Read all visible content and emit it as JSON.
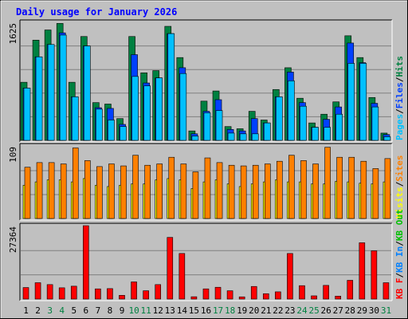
{
  "title": "Daily usage for January 2026",
  "colors": {
    "background": "#c0c0c0",
    "title": "#0000ff",
    "hits": "#008040",
    "files": "#0040ff",
    "pages": "#00c0ff",
    "visits": "#ffff00",
    "sites": "#ff8000",
    "kbin": "#0080ff",
    "kbout": "#00c000",
    "kbf": "#ff0000",
    "weekend_label": "#008040",
    "weekday_label": "#000000"
  },
  "chart_data": [
    {
      "type": "bar",
      "panel": "hits_files_pages",
      "ymax_label": "1625",
      "ylim": [
        0,
        1625
      ],
      "legend": [
        {
          "label": "Pages",
          "color": "#00c0ff"
        },
        {
          "label": "/",
          "color": "#000000"
        },
        {
          "label": "Files",
          "color": "#0040ff"
        },
        {
          "label": "/",
          "color": "#000000"
        },
        {
          "label": "Hits",
          "color": "#008040"
        }
      ],
      "series": [
        {
          "name": "Hits",
          "color": "#008040",
          "values": [
            800,
            1380,
            1520,
            1610,
            800,
            1430,
            520,
            500,
            300,
            1430,
            930,
            960,
            1570,
            1140,
            130,
            540,
            680,
            190,
            160,
            400,
            280,
            700,
            1000,
            580,
            240,
            360,
            530,
            1440,
            1140,
            590,
            100
          ]
        },
        {
          "name": "Files",
          "color": "#0040ff",
          "values": [
            720,
            1150,
            1320,
            1480,
            600,
            1300,
            450,
            440,
            220,
            1180,
            790,
            860,
            1470,
            1000,
            90,
            400,
            560,
            150,
            130,
            300,
            240,
            600,
            940,
            520,
            180,
            290,
            460,
            1340,
            1070,
            510,
            80
          ]
        },
        {
          "name": "Pages",
          "color": "#00c0ff",
          "values": [
            720,
            1150,
            1320,
            1450,
            600,
            1300,
            430,
            280,
            190,
            880,
            750,
            860,
            1470,
            920,
            60,
            380,
            410,
            100,
            90,
            90,
            240,
            600,
            820,
            470,
            180,
            180,
            360,
            1060,
            1060,
            460,
            50
          ]
        }
      ]
    },
    {
      "type": "bar",
      "panel": "visits_sites",
      "ymax_label": "109",
      "ylim": [
        0,
        109
      ],
      "legend": [
        {
          "label": "Visits",
          "color": "#ffff00"
        },
        {
          "label": "/",
          "color": "#000000"
        },
        {
          "label": "Sites",
          "color": "#ff8000"
        }
      ],
      "series": [
        {
          "name": "Visits",
          "color": "#ffff00",
          "values": [
            50,
            55,
            58,
            58,
            55,
            60,
            50,
            48,
            50,
            52,
            52,
            58,
            60,
            58,
            45,
            55,
            58,
            52,
            48,
            52,
            55,
            58,
            55,
            55,
            52,
            52,
            56,
            55,
            53,
            52,
            55
          ]
        },
        {
          "name": "Sites",
          "color": "#ff8000",
          "values": [
            77,
            84,
            84,
            82,
            106,
            87,
            78,
            82,
            79,
            95,
            80,
            82,
            92,
            82,
            70,
            91,
            84,
            80,
            79,
            80,
            82,
            86,
            95,
            87,
            82,
            107,
            92,
            92,
            86,
            75,
            90
          ]
        }
      ]
    },
    {
      "type": "bar",
      "panel": "kbytes",
      "ymax_label": "27364",
      "ylim": [
        0,
        27364
      ],
      "legend": [
        {
          "label": "KB F",
          "color": "#ff0000"
        },
        {
          "label": "/",
          "color": "#000000"
        },
        {
          "label": "KB In",
          "color": "#0080ff"
        },
        {
          "label": "/",
          "color": "#000000"
        },
        {
          "label": "KB Out",
          "color": "#00c000"
        }
      ],
      "series": [
        {
          "name": "KB F",
          "color": "#ff0000",
          "values": [
            4300,
            6100,
            5400,
            4200,
            4800,
            27364,
            3800,
            3900,
            1400,
            6400,
            3100,
            5400,
            23000,
            17000,
            860,
            3800,
            4400,
            3100,
            820,
            4700,
            2000,
            2700,
            17000,
            5000,
            1200,
            5100,
            1100,
            7000,
            21000,
            18000,
            6100
          ]
        }
      ],
      "categories": [
        "1",
        "2",
        "3",
        "4",
        "5",
        "6",
        "7",
        "8",
        "9",
        "10",
        "11",
        "12",
        "13",
        "14",
        "15",
        "16",
        "17",
        "18",
        "19",
        "20",
        "21",
        "22",
        "23",
        "24",
        "25",
        "26",
        "27",
        "28",
        "29",
        "30",
        "31"
      ],
      "weekend_days": [
        "3",
        "4",
        "10",
        "11",
        "17",
        "18",
        "24",
        "25",
        "31"
      ]
    }
  ]
}
